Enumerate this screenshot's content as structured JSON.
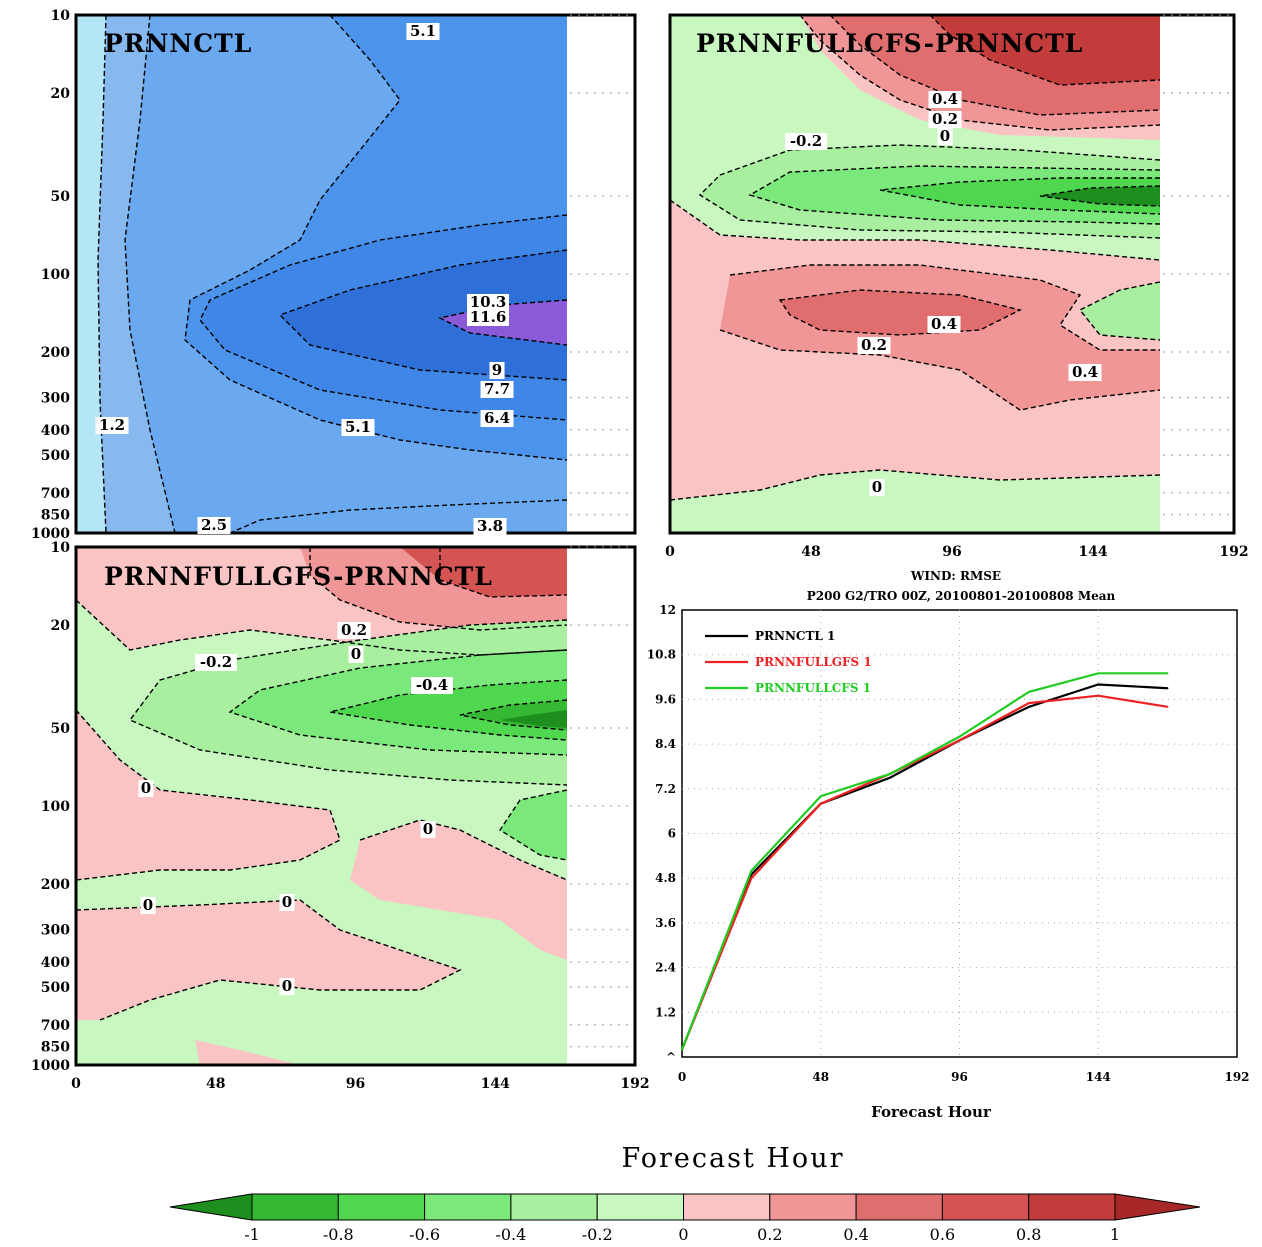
{
  "colors": {
    "blue1": "#b4e6f5",
    "blue2": "#87b9ee",
    "blue3": "#6aa8ef",
    "blue4": "#4b93eb",
    "blue5": "#3f86e6",
    "blue6": "#2f6fd8",
    "purple": "#8a5ad8",
    "g1": "#1e8f1e",
    "g2": "#35b935",
    "g3": "#4fd84f",
    "g4": "#7ae87a",
    "g5": "#a8f0a0",
    "g6": "#c8f8c0",
    "r1": "#fac4c4",
    "r2": "#f09696",
    "r3": "#e06e6e",
    "r4": "#d45454",
    "r5": "#c23c3c",
    "r6": "#a82828",
    "line_black": "#000000",
    "line_red": "#ee2222",
    "line_green": "#22cc22"
  },
  "chart_data": [
    {
      "type": "heatmap",
      "title": "PRNNCTL",
      "x_ticks": [
        "0",
        "48",
        "96",
        "144",
        "192"
      ],
      "y_ticks": [
        "10",
        "20",
        "50",
        "100",
        "200",
        "300",
        "400",
        "500",
        "700",
        "850",
        "1000"
      ],
      "y_scale": "log",
      "contour_labels": [
        "5.1",
        "10.3",
        "11.6",
        "9",
        "7.7",
        "6.4",
        "5.1",
        "1.2",
        "2.5",
        "3.8"
      ]
    },
    {
      "type": "heatmap",
      "title": "PRNNFULLCFS-PRNNCTL",
      "x_ticks": [
        "0",
        "48",
        "96",
        "144",
        "192"
      ],
      "contour_labels": [
        "0.4",
        "0.2",
        "0",
        "-0.2",
        "0.4",
        "0.2",
        "0.4",
        "0"
      ]
    },
    {
      "type": "heatmap",
      "title": "PRNNFULLGFS-PRNNCTL",
      "x_ticks": [
        "0",
        "48",
        "96",
        "144",
        "192"
      ],
      "y_ticks": [
        "10",
        "20",
        "50",
        "100",
        "200",
        "300",
        "400",
        "500",
        "700",
        "850",
        "1000"
      ],
      "y_scale": "log",
      "contour_labels": [
        "0.2",
        "0",
        "-0.2",
        "-0.4",
        "0",
        "0",
        "0",
        "0",
        "0"
      ]
    },
    {
      "type": "line",
      "title": "WIND: RMSE",
      "subtitle": "P200 G2/TRO 00Z, 20100801-20100808 Mean",
      "xlabel": "Forecast Hour",
      "ylabel": "",
      "x_ticks": [
        "0",
        "48",
        "96",
        "144",
        "192"
      ],
      "y_ticks": [
        "^",
        "1.2",
        "2.4",
        "3.6",
        "4.8",
        "6",
        "7.2",
        "8.4",
        "9.6",
        "10.8",
        "12"
      ],
      "xlim": [
        0,
        192
      ],
      "ylim": [
        0,
        12
      ],
      "legend_position": "top-left",
      "x": [
        0,
        24,
        48,
        72,
        96,
        120,
        144,
        168
      ],
      "series": [
        {
          "name": "PRNNCTL   1",
          "values": [
            0.2,
            4.9,
            6.8,
            7.5,
            8.5,
            9.4,
            10.0,
            9.9
          ]
        },
        {
          "name": "PRNNFULLGFS   1",
          "values": [
            0.2,
            4.8,
            6.8,
            7.6,
            8.5,
            9.5,
            9.7,
            9.4
          ]
        },
        {
          "name": "PRNNFULLCFS   1",
          "values": [
            0.2,
            5.0,
            7.0,
            7.6,
            8.6,
            9.8,
            10.3,
            10.3
          ]
        }
      ]
    }
  ],
  "footer": {
    "xlabel": "Forecast Hour",
    "colorbar": {
      "labels": [
        "-1",
        "-0.8",
        "-0.6",
        "-0.4",
        "-0.2",
        "0",
        "0.2",
        "0.4",
        "0.6",
        "0.8",
        "1"
      ]
    }
  }
}
